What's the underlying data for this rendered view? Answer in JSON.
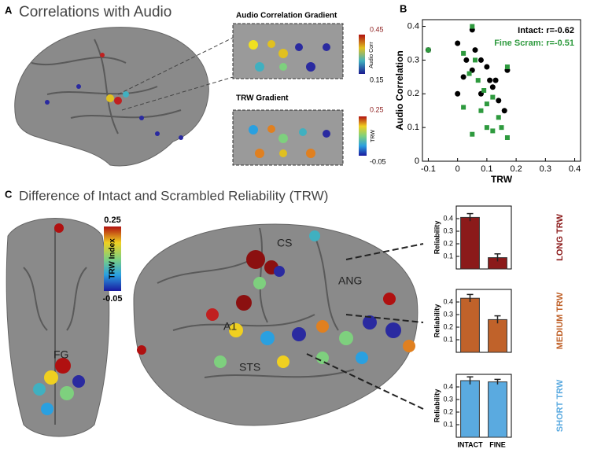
{
  "panel_labels": [
    "A",
    "B",
    "C"
  ],
  "panel_a": {
    "title": "Correlations with Audio",
    "gradient1": {
      "title": "Audio Correlation Gradient",
      "label": "Audio Corr",
      "max": 0.45,
      "min": 0.15
    },
    "gradient2": {
      "title": "TRW Gradient",
      "label": "TRW",
      "max": 0.25,
      "min": -0.05
    }
  },
  "panel_c": {
    "title": "Difference of Intact and Scrambled Reliability (TRW)",
    "colorbar": {
      "label": "TRW Index",
      "max": 0.25,
      "min": -0.05
    },
    "regions": [
      "FG",
      "CS",
      "ANG",
      "A1",
      "STS"
    ]
  },
  "chart_data": [
    {
      "type": "scatter",
      "x_label": "TRW",
      "y_label": "Audio Correlation",
      "xlim": [
        -0.12,
        0.42
      ],
      "xticks": [
        -0.1,
        0,
        0.1,
        0.2,
        0.3,
        0.4
      ],
      "ylim": [
        0,
        0.42
      ],
      "yticks": [
        0,
        0.1,
        0.2,
        0.3,
        0.4
      ],
      "series": [
        {
          "name": "Intact: r=-0.62",
          "color": "#000000",
          "marker": "circle",
          "x": [
            -0.1,
            0,
            0.03,
            0.05,
            0.06,
            0.08,
            0.05,
            0.02,
            0.1,
            0.11,
            0.13,
            0.12,
            0.14,
            0.16,
            0.17,
            0,
            0.08
          ],
          "values": [
            0.33,
            0.35,
            0.3,
            0.39,
            0.33,
            0.3,
            0.27,
            0.25,
            0.28,
            0.24,
            0.24,
            0.22,
            0.18,
            0.15,
            0.27,
            0.2,
            0.2
          ]
        },
        {
          "name": "Fine Scram: r=-0.51",
          "color": "#2e9a3e",
          "marker": "square",
          "x": [
            -0.1,
            0.02,
            0.05,
            0.06,
            0.04,
            0.07,
            0.09,
            0.1,
            0.12,
            0.08,
            0.14,
            0.15,
            0.12,
            0.05,
            0.17,
            0.17,
            0.02,
            0.1
          ],
          "values": [
            0.33,
            0.32,
            0.4,
            0.3,
            0.26,
            0.24,
            0.21,
            0.17,
            0.19,
            0.15,
            0.13,
            0.1,
            0.09,
            0.08,
            0.28,
            0.07,
            0.16,
            0.1
          ]
        }
      ]
    },
    {
      "type": "bar",
      "side_label": "LONG TRW",
      "y_label": "Reliability",
      "color": "#8b1a1a",
      "categories": [
        null,
        null
      ],
      "values": [
        0.41,
        0.09
      ],
      "errors": [
        0.03,
        0.03
      ],
      "ylim": [
        0,
        0.5
      ],
      "yticks": [
        0.1,
        0.2,
        0.3,
        0.4
      ]
    },
    {
      "type": "bar",
      "side_label": "MEDIUM TRW",
      "y_label": "Reliability",
      "color": "#c0622a",
      "categories": [
        null,
        null
      ],
      "values": [
        0.43,
        0.26
      ],
      "errors": [
        0.03,
        0.03
      ],
      "ylim": [
        0,
        0.5
      ],
      "yticks": [
        0.1,
        0.2,
        0.3,
        0.4
      ]
    },
    {
      "type": "bar",
      "side_label": "SHORT TRW",
      "y_label": "Reliability",
      "color": "#5aaae0",
      "categories": [
        "INTACT",
        "FINE"
      ],
      "values": [
        0.45,
        0.44
      ],
      "errors": [
        0.03,
        0.02
      ],
      "ylim": [
        0,
        0.5
      ],
      "yticks": [
        0.1,
        0.2,
        0.3,
        0.4
      ]
    }
  ]
}
